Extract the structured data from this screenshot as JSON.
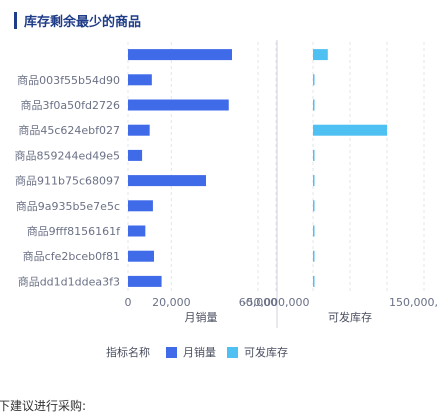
{
  "header": {
    "title": "库存剩余最少的商品"
  },
  "chart_data": {
    "type": "bar",
    "orientation": "horizontal",
    "categories": [
      "",
      "商品003f55b54d90",
      "商品3f0a50fd2726",
      "商品45c624ebf027",
      "商品859244ed49e5",
      "商品911b75c68097",
      "商品9a935b5e7e5c",
      "商品9fff8156161f",
      "商品cfe2bceb0f81",
      "商品dd1d1ddea3f3"
    ],
    "series": [
      {
        "name": "月销量",
        "color": "#3f6ae8",
        "values": [
          48000,
          11000,
          46500,
          10000,
          6500,
          36000,
          11500,
          8000,
          12000,
          15500
        ],
        "axis": {
          "title": "月销量",
          "ticks": [
            "0",
            "20,000",
            "60,000"
          ],
          "tick_values": [
            0,
            20000,
            60000
          ],
          "xlim": [
            0,
            60000
          ]
        }
      },
      {
        "name": "可发库存",
        "color": "#4fc0f2",
        "values": [
          20000000,
          800000,
          800000,
          100000000,
          400000,
          800000,
          800000,
          400000,
          800000,
          800000
        ],
        "axis": {
          "title": "可发库存",
          "ticks": [
            "-50,000,000",
            "150,000,000"
          ],
          "tick_values": [
            -50000000,
            150000000
          ],
          "xlim": [
            -50000000,
            150000000
          ]
        }
      }
    ],
    "legend": {
      "title": "指标名称",
      "position": "bottom"
    },
    "grid": true
  },
  "footer": {
    "text": "下建议进行采购:"
  }
}
